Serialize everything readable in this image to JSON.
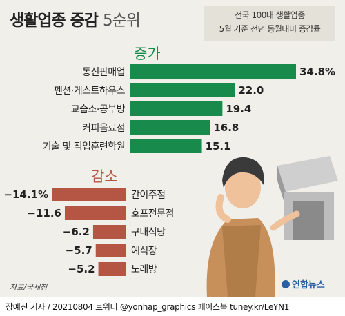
{
  "title_bold": "생활업종 증감",
  "title_light": "5순위",
  "note_line1": "전국 100대 생활업종",
  "note_line2": "5월 기준 전년 동월대비 증감률",
  "source": "자료/국세청",
  "logo_text": "연합뉴스",
  "credit": "장예진 기자 / 20210804 트위터 @yonhap_graphics  페이스북 tuney.kr/LeYN1",
  "colors": {
    "increase": "#178a4c",
    "decrease": "#b55543"
  },
  "chart_data": [
    {
      "type": "bar",
      "orientation": "horizontal",
      "section_label": "증가",
      "unit": "%",
      "categories": [
        "통신판매업",
        "펜션·게스트하우스",
        "교습소·공부방",
        "커피음료점",
        "기술 및 직업훈련학원"
      ],
      "values": [
        34.8,
        22.0,
        19.4,
        16.8,
        15.1
      ],
      "value_labels": [
        "34.8%",
        "22.0",
        "19.4",
        "16.8",
        "15.1"
      ]
    },
    {
      "type": "bar",
      "orientation": "horizontal",
      "section_label": "감소",
      "categories": [
        "간이주점",
        "호프전문점",
        "구내식당",
        "예식장",
        "노래방"
      ],
      "values": [
        -14.1,
        -11.6,
        -6.2,
        -5.7,
        -5.2
      ],
      "value_labels": [
        "-14.1%",
        "-11.6",
        "-6.2",
        "-5.7",
        "-5.2"
      ]
    }
  ]
}
